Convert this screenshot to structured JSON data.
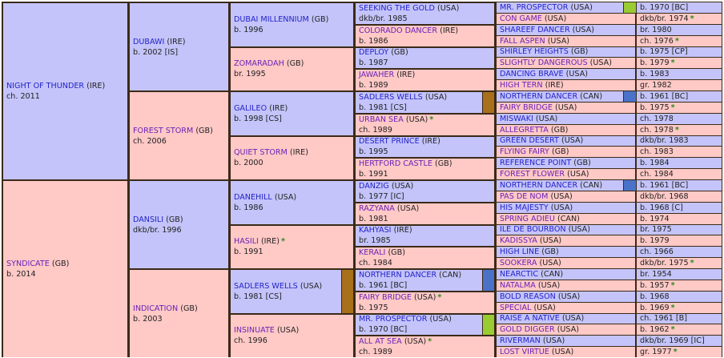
{
  "colors": {
    "sire_bg": "#c4c4fb",
    "dam_bg": "#ffc9c6",
    "border": "#3b2a18",
    "sire_link": "#2323c8",
    "dam_link": "#6a22b8",
    "star": "#2a8a1a",
    "marker_brown": "#a8701a",
    "marker_blue": "#4a72c8",
    "marker_green": "#99cc33"
  },
  "generations": [
    [
      {
        "name": "NIGHT OF THUNDER",
        "country": "(IRE)",
        "info": "ch. 2011"
      },
      {
        "name": "SYNDICATE",
        "country": "(GB)",
        "info": "b. 2014"
      }
    ],
    [
      {
        "name": "DUBAWI",
        "country": "(IRE)",
        "info": "b. 2002 [IS]"
      },
      {
        "name": "FOREST STORM",
        "country": "(GB)",
        "info": "ch. 2006"
      },
      {
        "name": "DANSILI",
        "country": "(GB)",
        "info": "dkb/br. 1996"
      },
      {
        "name": "INDICATION",
        "country": "(GB)",
        "info": "b. 2003"
      }
    ],
    [
      {
        "name": "DUBAI MILLENNIUM",
        "country": "(GB)",
        "info": "b. 1996"
      },
      {
        "name": "ZOMARADAH",
        "country": "(GB)",
        "info": "br. 1995"
      },
      {
        "name": "GALILEO",
        "country": "(IRE)",
        "info": "b. 1998 [CS]"
      },
      {
        "name": "QUIET STORM",
        "country": "(IRE)",
        "info": "b. 2000"
      },
      {
        "name": "DANEHILL",
        "country": "(USA)",
        "info": "b. 1986"
      },
      {
        "name": "HASILI",
        "country": "(IRE)",
        "info": "b. 1991",
        "star": "*"
      },
      {
        "name": "SADLERS WELLS",
        "country": "(USA)",
        "info": "b. 1981 [CS]",
        "marker": "#a8701a"
      },
      {
        "name": "INSINUATE",
        "country": "(USA)",
        "info": "ch. 1996"
      }
    ],
    [
      {
        "name": "SEEKING THE GOLD",
        "country": "(USA)",
        "info": "dkb/br. 1985"
      },
      {
        "name": "COLORADO DANCER",
        "country": "(IRE)",
        "info": "b. 1986"
      },
      {
        "name": "DEPLOY",
        "country": "(GB)",
        "info": "b. 1987"
      },
      {
        "name": "JAWAHER",
        "country": "(IRE)",
        "info": "b. 1989"
      },
      {
        "name": "SADLERS WELLS",
        "country": "(USA)",
        "info": "b. 1981 [CS]",
        "marker": "#a8701a"
      },
      {
        "name": "URBAN SEA",
        "country": "(USA)",
        "info": "ch. 1989",
        "star": "*"
      },
      {
        "name": "DESERT PRINCE",
        "country": "(IRE)",
        "info": "b. 1995"
      },
      {
        "name": "HERTFORD CASTLE",
        "country": "(GB)",
        "info": "b. 1991"
      },
      {
        "name": "DANZIG",
        "country": "(USA)",
        "info": "b. 1977 [IC]"
      },
      {
        "name": "RAZYANA",
        "country": "(USA)",
        "info": "b. 1981"
      },
      {
        "name": "KAHYASI",
        "country": "(IRE)",
        "info": "br. 1985"
      },
      {
        "name": "KERALI",
        "country": "(GB)",
        "info": "ch. 1984"
      },
      {
        "name": "NORTHERN DANCER",
        "country": "(CAN)",
        "info": "b. 1961 [BC]",
        "marker": "#4a72c8"
      },
      {
        "name": "FAIRY BRIDGE",
        "country": "(USA)",
        "info": "b. 1975",
        "star": "*"
      },
      {
        "name": "MR. PROSPECTOR",
        "country": "(USA)",
        "info": "b. 1970 [BC]",
        "marker": "#99cc33"
      },
      {
        "name": "ALL AT SEA",
        "country": "(USA)",
        "info": "ch. 1989",
        "star": "*"
      }
    ],
    [
      {
        "name": "MR. PROSPECTOR",
        "country": "(USA)",
        "info": "b. 1970 [BC]",
        "marker": "#99cc33"
      },
      {
        "name": "CON GAME",
        "country": "(USA)",
        "info": "dkb/br. 1974",
        "star": "*"
      },
      {
        "name": "SHAREEF DANCER",
        "country": "(USA)",
        "info": "br. 1980"
      },
      {
        "name": "FALL ASPEN",
        "country": "(USA)",
        "info": "ch. 1976",
        "star": "*"
      },
      {
        "name": "SHIRLEY HEIGHTS",
        "country": "(GB)",
        "info": "b. 1975 [CP]"
      },
      {
        "name": "SLIGHTLY DANGEROUS",
        "country": "(USA)",
        "info": "b. 1979",
        "star": "*"
      },
      {
        "name": "DANCING BRAVE",
        "country": "(USA)",
        "info": "b. 1983"
      },
      {
        "name": "HIGH TERN",
        "country": "(IRE)",
        "info": "gr. 1982"
      },
      {
        "name": "NORTHERN DANCER",
        "country": "(CAN)",
        "info": "b. 1961 [BC]",
        "marker": "#4a72c8"
      },
      {
        "name": "FAIRY BRIDGE",
        "country": "(USA)",
        "info": "b. 1975",
        "star": "*"
      },
      {
        "name": "MISWAKI",
        "country": "(USA)",
        "info": "ch. 1978"
      },
      {
        "name": "ALLEGRETTA",
        "country": "(GB)",
        "info": "ch. 1978",
        "star": "*"
      },
      {
        "name": "GREEN DESERT",
        "country": "(USA)",
        "info": "dkb/br. 1983"
      },
      {
        "name": "FLYING FAIRY",
        "country": "(GB)",
        "info": "ch. 1983"
      },
      {
        "name": "REFERENCE POINT",
        "country": "(GB)",
        "info": "b. 1984"
      },
      {
        "name": "FOREST FLOWER",
        "country": "(USA)",
        "info": "ch. 1984"
      },
      {
        "name": "NORTHERN DANCER",
        "country": "(CAN)",
        "info": "b. 1961 [BC]",
        "marker": "#4a72c8"
      },
      {
        "name": "PAS DE NOM",
        "country": "(USA)",
        "info": "dkb/br. 1968"
      },
      {
        "name": "HIS MAJESTY",
        "country": "(USA)",
        "info": "b. 1968 [C]"
      },
      {
        "name": "SPRING ADIEU",
        "country": "(CAN)",
        "info": "b. 1974"
      },
      {
        "name": "ILE DE BOURBON",
        "country": "(USA)",
        "info": "br. 1975"
      },
      {
        "name": "KADISSYA",
        "country": "(USA)",
        "info": "b. 1979"
      },
      {
        "name": "HIGH LINE",
        "country": "(GB)",
        "info": "ch. 1966"
      },
      {
        "name": "SOOKERA",
        "country": "(USA)",
        "info": "dkb/br. 1975",
        "star": "*"
      },
      {
        "name": "NEARCTIC",
        "country": "(CAN)",
        "info": "br. 1954"
      },
      {
        "name": "NATALMA",
        "country": "(USA)",
        "info": "b. 1957",
        "star": "*"
      },
      {
        "name": "BOLD REASON",
        "country": "(USA)",
        "info": "b. 1968"
      },
      {
        "name": "SPECIAL",
        "country": "(USA)",
        "info": "b. 1969",
        "star": "*"
      },
      {
        "name": "RAISE A NATIVE",
        "country": "(USA)",
        "info": "ch. 1961 [B]"
      },
      {
        "name": "GOLD DIGGER",
        "country": "(USA)",
        "info": "b. 1962",
        "star": "*"
      },
      {
        "name": "RIVERMAN",
        "country": "(USA)",
        "info": "dkb/br. 1969 [IC]"
      },
      {
        "name": "LOST VIRTUE",
        "country": "(USA)",
        "info": "gr. 1977",
        "star": "*"
      }
    ]
  ]
}
